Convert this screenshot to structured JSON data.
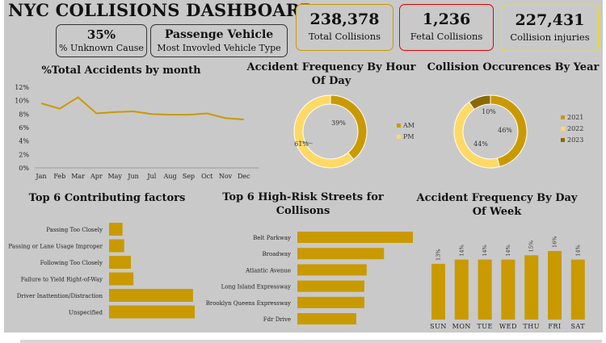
{
  "title": "NYC COLLISIONS DASHBOARD",
  "colors": {
    "gold": "#c99a00",
    "light": "#ffd966",
    "dark": "#8a6a00",
    "bg": "#c9c9c9",
    "red": "#e00000",
    "yellow": "#f2e200",
    "goldBorder": "#c99a00"
  },
  "kpis": {
    "unknown": {
      "value": "35%",
      "label": "% Unknown Cause"
    },
    "vehicle": {
      "value": "Passenge Vehicle",
      "label": "Most Invovled Vehicle Type"
    },
    "total": {
      "value": "238,378",
      "label": "Total Collisions"
    },
    "fatal": {
      "value": "1,236",
      "label": "Fetal Collisions"
    },
    "injuries": {
      "value": "227,431",
      "label": "Collision injuries"
    }
  },
  "monthly": {
    "title": "%Total Accidents by month",
    "chart_data": {
      "type": "line",
      "categories": [
        "Jan",
        "Feb",
        "Mar",
        "Apr",
        "May",
        "Jun",
        "Jul",
        "Aug",
        "Sep",
        "Oct",
        "Nov",
        "Dec"
      ],
      "values": [
        9.6,
        8.8,
        10.5,
        8.1,
        8.3,
        8.4,
        8.0,
        7.9,
        7.9,
        8.1,
        7.4,
        7.2
      ],
      "yticks": [
        "0%",
        "2%",
        "4%",
        "6%",
        "8%",
        "10%",
        "12%"
      ],
      "ylim": [
        0,
        12
      ]
    }
  },
  "hour": {
    "title": "Accident Frequency By Hour Of Day",
    "chart_data": {
      "type": "pie",
      "labels": [
        "AM",
        "PM"
      ],
      "values": [
        39,
        61
      ],
      "value_labels": [
        "39%",
        "61%"
      ]
    }
  },
  "year": {
    "title": "Collision Occurences By Year",
    "chart_data": {
      "type": "pie",
      "labels": [
        "2021",
        "2022",
        "2023"
      ],
      "values": [
        46,
        44,
        10
      ],
      "value_labels": [
        "46%",
        "44%",
        "10%"
      ]
    }
  },
  "factors": {
    "title": "Top 6 Contributing factors",
    "chart_data": {
      "type": "bar",
      "categories": [
        "Passing Too Closely",
        "Passing or Lane Usage Improper",
        "Following Too Closely",
        "Failure to Yield Right-of-Way",
        "Driver Inattention/Distraction",
        "Unspecified"
      ],
      "values": [
        16,
        18,
        26,
        29,
        100,
        102
      ]
    }
  },
  "streets": {
    "title": "Top 6 High-Risk Streets for Collisons",
    "chart_data": {
      "type": "bar",
      "categories": [
        "Belt Parkway",
        "Broadway",
        "Atlantic Avenue",
        "Long Island Expressway",
        "Brooklyn Queens Expressway",
        "Fdr Drive"
      ],
      "values": [
        100,
        75,
        60,
        58,
        58,
        51
      ]
    }
  },
  "weekday": {
    "title": "Accident Frequency By Day Of Week",
    "chart_data": {
      "type": "bar",
      "categories": [
        "SUN",
        "MON",
        "TUE",
        "WED",
        "THU",
        "FRI",
        "SAT"
      ],
      "values": [
        13,
        14,
        14,
        14,
        15,
        16,
        14
      ],
      "value_labels": [
        "13%",
        "14%",
        "14%",
        "14%",
        "15%",
        "16%",
        "14%"
      ]
    }
  }
}
